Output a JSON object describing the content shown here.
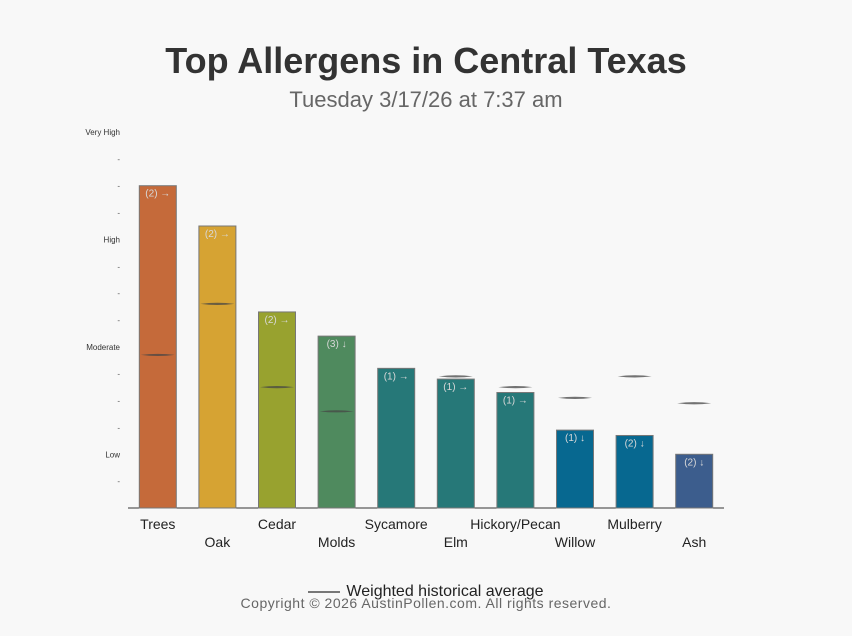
{
  "title": "Top Allergens in Central Texas",
  "subtitle": "Tuesday 3/17/26 at 7:37 am",
  "legend": {
    "label": "Weighted historical average"
  },
  "copyright": "Copyright © 2026 AustinPollen.com.  All rights reserved.",
  "chart_data": {
    "type": "bar",
    "title": "Top Allergens in Central Texas",
    "subtitle": "Tuesday 3/17/26 at 7:37 am",
    "xlabel": "",
    "ylabel": "",
    "ylim": [
      0,
      14
    ],
    "y_ticks": [
      {
        "value": 2,
        "label": "Low"
      },
      {
        "value": 6,
        "label": "Moderate"
      },
      {
        "value": 10,
        "label": "High"
      },
      {
        "value": 14,
        "label": "Very High"
      }
    ],
    "minor_tick_label": "-",
    "categories": [
      "Trees",
      "Oak",
      "Cedar",
      "Molds",
      "Sycamore",
      "Elm",
      "Hickory/Pecan",
      "Willow",
      "Mulberry",
      "Ash"
    ],
    "values": [
      12.0,
      10.5,
      7.3,
      6.4,
      5.2,
      4.8,
      4.3,
      2.9,
      2.7,
      2.0
    ],
    "historical_average": [
      5.7,
      7.6,
      4.5,
      3.6,
      null,
      4.9,
      4.5,
      4.1,
      4.9,
      3.9
    ],
    "labels": [
      "(2) →",
      "(2) →",
      "(2) →",
      "(3) ↓",
      "(1) →",
      "(1) →",
      "(1) →",
      "(1) ↓",
      "(2) ↓",
      "(2) ↓"
    ],
    "colors": [
      "#c56a3a",
      "#d6a333",
      "#98a22f",
      "#4f8a5e",
      "#267878",
      "#267878",
      "#267878",
      "#076890",
      "#076890",
      "#3c5d8d"
    ],
    "series": [
      {
        "values": [
          12.0,
          10.5,
          7.3,
          6.4,
          5.2,
          4.8,
          4.3,
          2.9,
          2.7,
          2.0
        ]
      }
    ],
    "grid": false,
    "legend_position": "bottom"
  }
}
